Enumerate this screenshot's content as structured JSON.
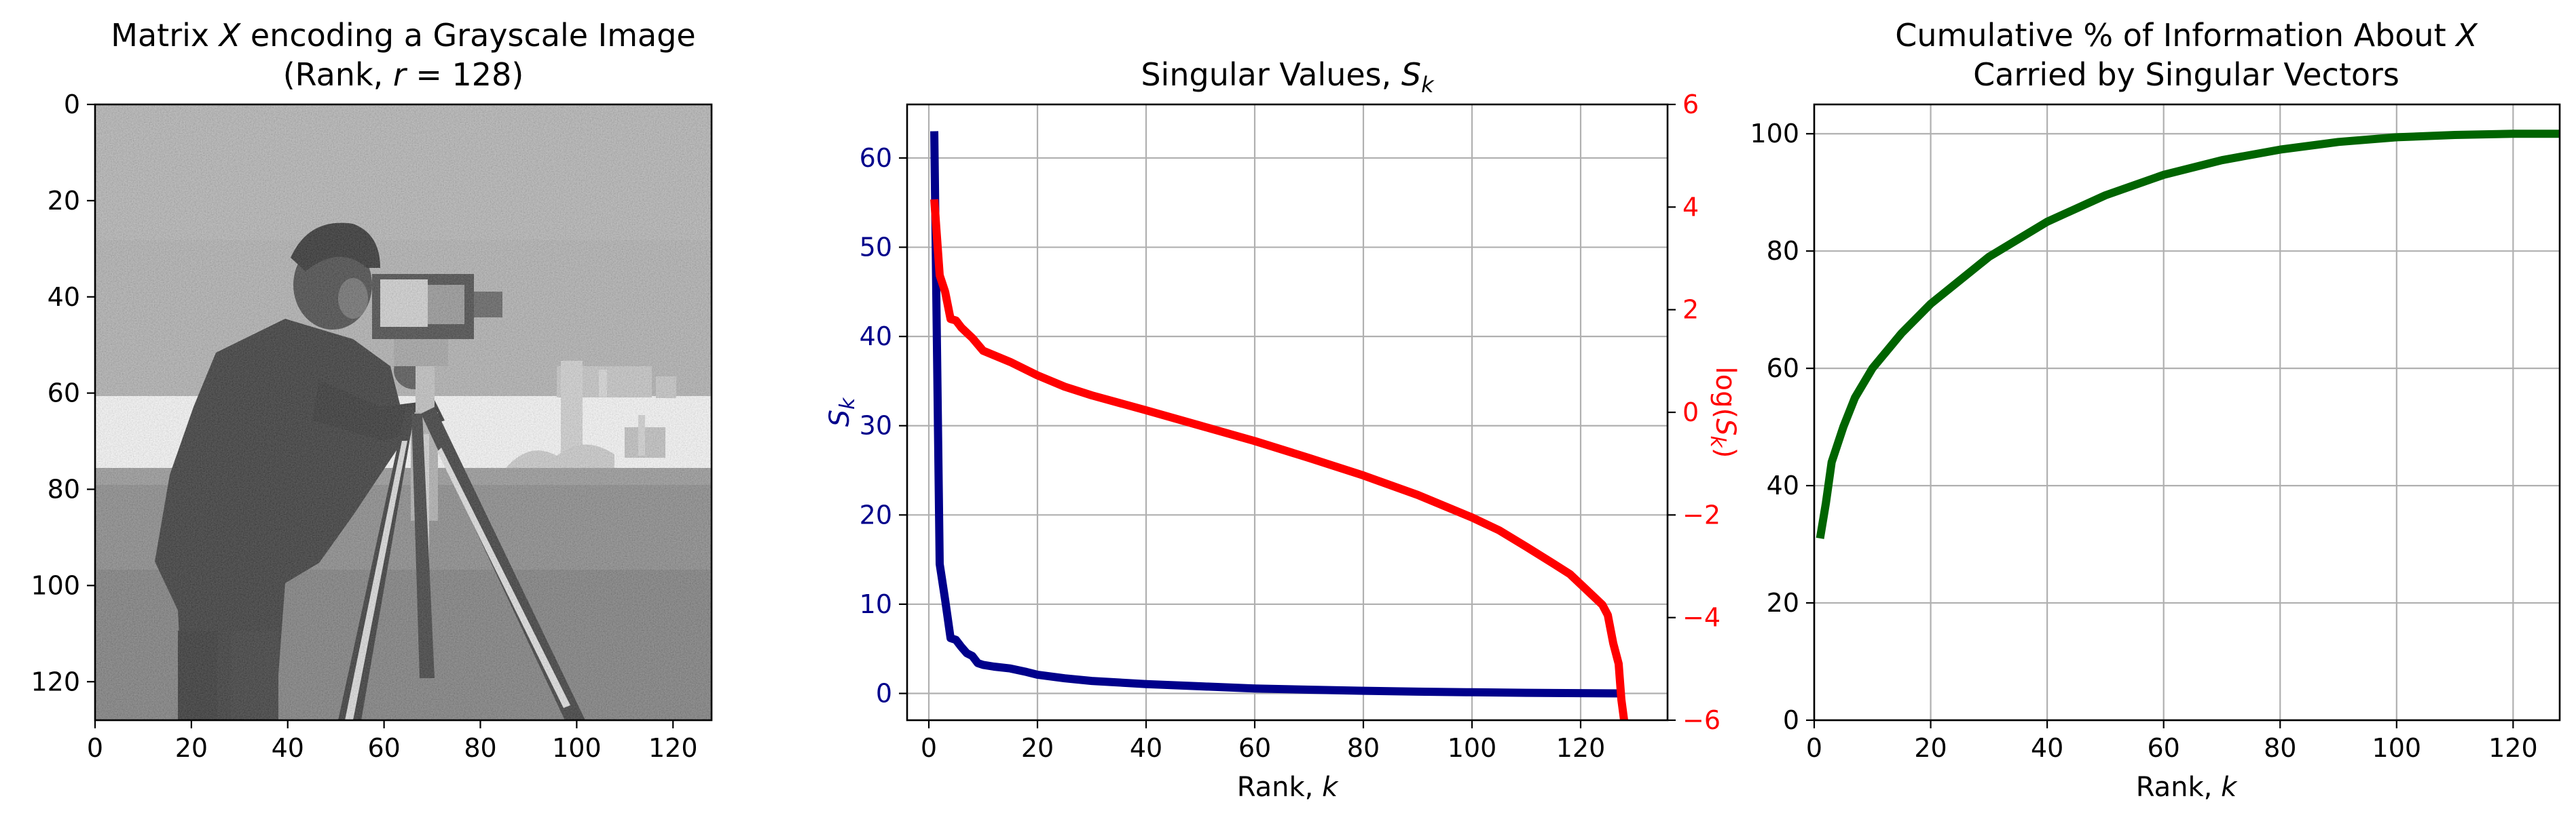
{
  "colors": {
    "blue": "#00008b",
    "red": "#ff0000",
    "green": "#006400",
    "grid": "#b0b0b0"
  },
  "chart_data": [
    {
      "type": "image",
      "title_line1_pre": "Matrix ",
      "title_line1_var": "X",
      "title_line1_post": " encoding a Grayscale Image",
      "title_line2_pre": "(Rank, ",
      "title_line2_var": "r",
      "title_line2_post": " = 128)",
      "xlim": [
        0,
        128
      ],
      "ylim": [
        128,
        0
      ],
      "x_ticks": [
        0,
        20,
        40,
        60,
        80,
        100,
        120
      ],
      "y_ticks": [
        0,
        20,
        40,
        60,
        80,
        100,
        120
      ],
      "image_description": "cameraman"
    },
    {
      "type": "line",
      "title_pre": "Singular Values, ",
      "title_var": "S",
      "title_sub": "k",
      "xlabel_pre": "Rank, ",
      "xlabel_var": "k",
      "ylabel_var": "S",
      "ylabel_sub": "k",
      "y2label_pre": "log(",
      "y2label_var": "S",
      "y2label_sub": "k",
      "y2label_post": ")",
      "xlim": [
        -4,
        136
      ],
      "ylim": [
        -3,
        66
      ],
      "y2lim": [
        -6,
        6
      ],
      "x_ticks": [
        0,
        20,
        40,
        60,
        80,
        100,
        120
      ],
      "y_ticks": [
        0,
        10,
        20,
        30,
        40,
        50,
        60
      ],
      "y2_ticks": [
        -6,
        -4,
        -2,
        0,
        2,
        4,
        6
      ],
      "y2_tick_labels": [
        "−6",
        "−4",
        "−2",
        "0",
        "2",
        "4",
        "6"
      ],
      "series": [
        {
          "name": "S_k",
          "axis": "left",
          "x": [
            1,
            2,
            3,
            4,
            5,
            6,
            7,
            8,
            9,
            10,
            12,
            15,
            18,
            20,
            25,
            30,
            40,
            50,
            60,
            70,
            80,
            90,
            100,
            110,
            120,
            125,
            128
          ],
          "y": [
            63,
            14.5,
            10.5,
            6.2,
            6.0,
            5.2,
            4.5,
            4.2,
            3.4,
            3.2,
            3.0,
            2.8,
            2.4,
            2.1,
            1.7,
            1.4,
            1.05,
            0.8,
            0.55,
            0.42,
            0.3,
            0.2,
            0.13,
            0.07,
            0.03,
            0.01,
            0.0
          ]
        },
        {
          "name": "log(S_k)",
          "axis": "right",
          "x": [
            1,
            2,
            3,
            4,
            5,
            6,
            8,
            10,
            15,
            20,
            25,
            30,
            40,
            50,
            60,
            70,
            80,
            90,
            100,
            105,
            110,
            115,
            118,
            120,
            122,
            124,
            125,
            126,
            127,
            127.5,
            128
          ],
          "y": [
            4.15,
            2.67,
            2.35,
            1.82,
            1.79,
            1.65,
            1.45,
            1.2,
            0.98,
            0.72,
            0.5,
            0.33,
            0.04,
            -0.26,
            -0.56,
            -0.89,
            -1.23,
            -1.61,
            -2.05,
            -2.3,
            -2.62,
            -2.95,
            -3.15,
            -3.35,
            -3.55,
            -3.75,
            -3.95,
            -4.5,
            -4.9,
            -5.6,
            -6.0
          ]
        }
      ]
    },
    {
      "type": "line",
      "title_line1_pre": "Cumulative % of Information About ",
      "title_line1_var": "X",
      "title_line2": "Carried by Singular Vectors",
      "xlabel_pre": "Rank, ",
      "xlabel_var": "k",
      "xlim": [
        0,
        128
      ],
      "ylim": [
        0,
        105
      ],
      "x_ticks": [
        0,
        20,
        40,
        60,
        80,
        100,
        120
      ],
      "y_ticks": [
        0,
        20,
        40,
        60,
        80,
        100
      ],
      "series": [
        {
          "name": "cumulative %",
          "x": [
            1,
            2,
            3,
            5,
            7,
            10,
            15,
            20,
            30,
            40,
            50,
            60,
            70,
            80,
            90,
            100,
            110,
            120,
            128
          ],
          "y": [
            31,
            37,
            44,
            50,
            55,
            60,
            66,
            71,
            79,
            85,
            89.5,
            93,
            95.5,
            97.3,
            98.6,
            99.4,
            99.8,
            100,
            100
          ]
        }
      ]
    }
  ]
}
